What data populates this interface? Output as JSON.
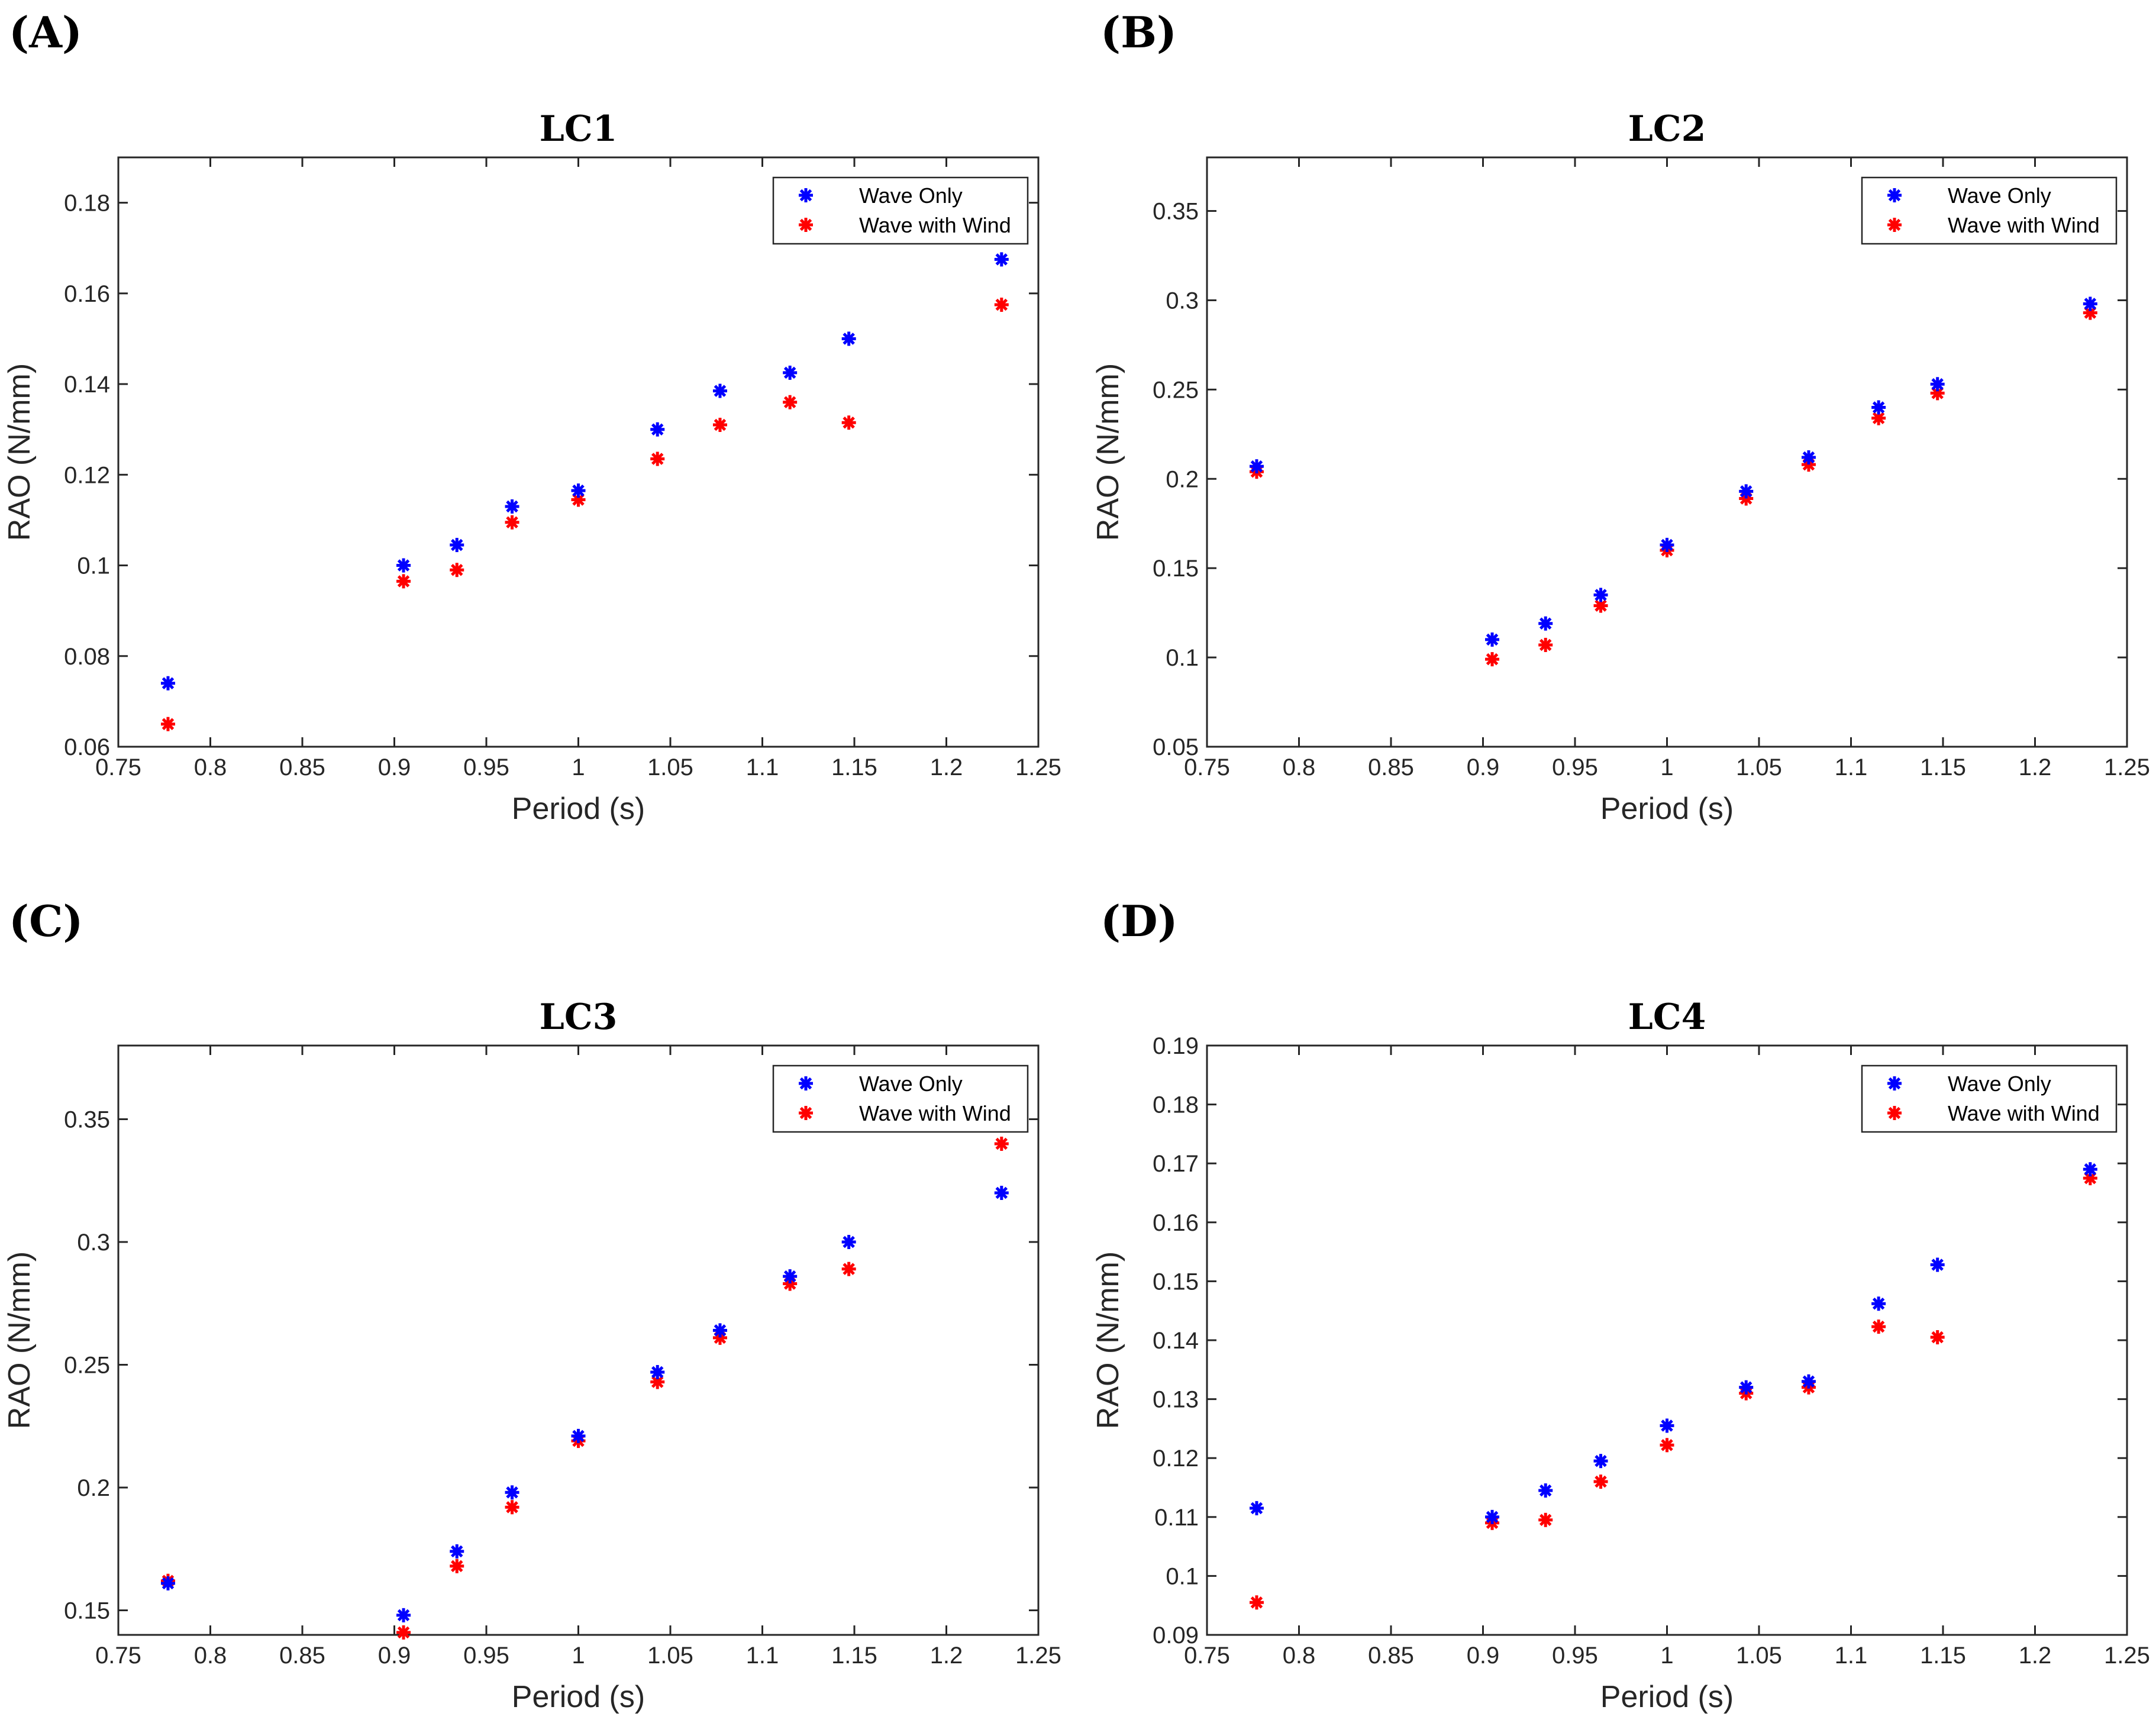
{
  "colors": {
    "series_0": "#0000ff",
    "series_1": "#ff0000",
    "axis": "#262626"
  },
  "chart_data": [
    {
      "panel": "(A)",
      "type": "scatter",
      "title": "LC1",
      "xlabel": "Period (s)",
      "ylabel": "RAO (N/mm)",
      "xlim": [
        0.75,
        1.25
      ],
      "ylim": [
        0.06,
        0.19
      ],
      "xticks": [
        "0.75",
        "0.8",
        "0.85",
        "0.9",
        "0.95",
        "1",
        "1.05",
        "1.1",
        "1.15",
        "1.2",
        "1.25"
      ],
      "yticks": [
        "0.06",
        "0.08",
        "0.1",
        "0.12",
        "0.14",
        "0.16",
        "0.18"
      ],
      "legend": "top-right",
      "x": [
        0.777,
        0.905,
        0.934,
        0.964,
        1.0,
        1.043,
        1.077,
        1.115,
        1.147,
        1.23
      ],
      "series": [
        {
          "name": "Wave Only",
          "values": [
            0.074,
            0.1,
            0.1045,
            0.113,
            0.1165,
            0.13,
            0.1385,
            0.1425,
            0.15,
            0.1675
          ]
        },
        {
          "name": "Wave with Wind",
          "values": [
            0.065,
            0.0965,
            0.099,
            0.1095,
            0.1145,
            0.1235,
            0.131,
            0.136,
            0.1315,
            0.1575
          ]
        }
      ]
    },
    {
      "panel": "(B)",
      "type": "scatter",
      "title": "LC2",
      "xlabel": "Period (s)",
      "ylabel": "RAO (N/mm)",
      "xlim": [
        0.75,
        1.25
      ],
      "ylim": [
        0.05,
        0.38
      ],
      "xticks": [
        "0.75",
        "0.8",
        "0.85",
        "0.9",
        "0.95",
        "1",
        "1.05",
        "1.1",
        "1.15",
        "1.2",
        "1.25"
      ],
      "yticks": [
        "0.05",
        "0.1",
        "0.15",
        "0.2",
        "0.25",
        "0.3",
        "0.35"
      ],
      "legend": "top-right",
      "x": [
        0.777,
        0.905,
        0.934,
        0.964,
        1.0,
        1.043,
        1.077,
        1.115,
        1.147,
        1.23
      ],
      "series": [
        {
          "name": "Wave Only",
          "values": [
            0.207,
            0.11,
            0.119,
            0.135,
            0.163,
            0.193,
            0.212,
            0.24,
            0.253,
            0.298
          ]
        },
        {
          "name": "Wave with Wind",
          "values": [
            0.204,
            0.099,
            0.107,
            0.129,
            0.16,
            0.189,
            0.208,
            0.234,
            0.248,
            0.293
          ]
        }
      ]
    },
    {
      "panel": "(C)",
      "type": "scatter",
      "title": "LC3",
      "xlabel": "Period (s)",
      "ylabel": "RAO (N/mm)",
      "xlim": [
        0.75,
        1.25
      ],
      "ylim": [
        0.14,
        0.38
      ],
      "xticks": [
        "0.75",
        "0.8",
        "0.85",
        "0.9",
        "0.95",
        "1",
        "1.05",
        "1.1",
        "1.15",
        "1.2",
        "1.25"
      ],
      "yticks": [
        "0.15",
        "0.2",
        "0.25",
        "0.3",
        "0.35"
      ],
      "legend": "top-right",
      "x": [
        0.777,
        0.905,
        0.934,
        0.964,
        1.0,
        1.043,
        1.077,
        1.115,
        1.147,
        1.23
      ],
      "series": [
        {
          "name": "Wave Only",
          "values": [
            0.161,
            0.148,
            0.174,
            0.198,
            0.221,
            0.247,
            0.264,
            0.286,
            0.3,
            0.32
          ]
        },
        {
          "name": "Wave with Wind",
          "values": [
            0.162,
            0.141,
            0.168,
            0.192,
            0.219,
            0.243,
            0.261,
            0.283,
            0.289,
            0.34
          ]
        }
      ]
    },
    {
      "panel": "(D)",
      "type": "scatter",
      "title": "LC4",
      "xlabel": "Period (s)",
      "ylabel": "RAO (N/mm)",
      "xlim": [
        0.75,
        1.25
      ],
      "ylim": [
        0.09,
        0.19
      ],
      "xticks": [
        "0.75",
        "0.8",
        "0.85",
        "0.9",
        "0.95",
        "1",
        "1.05",
        "1.1",
        "1.15",
        "1.2",
        "1.25"
      ],
      "yticks": [
        "0.09",
        "0.1",
        "0.11",
        "0.12",
        "0.13",
        "0.14",
        "0.15",
        "0.16",
        "0.17",
        "0.18",
        "0.19"
      ],
      "legend": "top-right",
      "x": [
        0.777,
        0.905,
        0.934,
        0.964,
        1.0,
        1.043,
        1.077,
        1.115,
        1.147,
        1.23
      ],
      "series": [
        {
          "name": "Wave Only",
          "values": [
            0.1115,
            0.11,
            0.1145,
            0.1195,
            0.1255,
            0.132,
            0.133,
            0.1462,
            0.1528,
            0.169
          ]
        },
        {
          "name": "Wave with Wind",
          "values": [
            0.0955,
            0.109,
            0.1095,
            0.116,
            0.1222,
            0.131,
            0.132,
            0.1423,
            0.1405,
            0.1675
          ]
        }
      ]
    }
  ]
}
